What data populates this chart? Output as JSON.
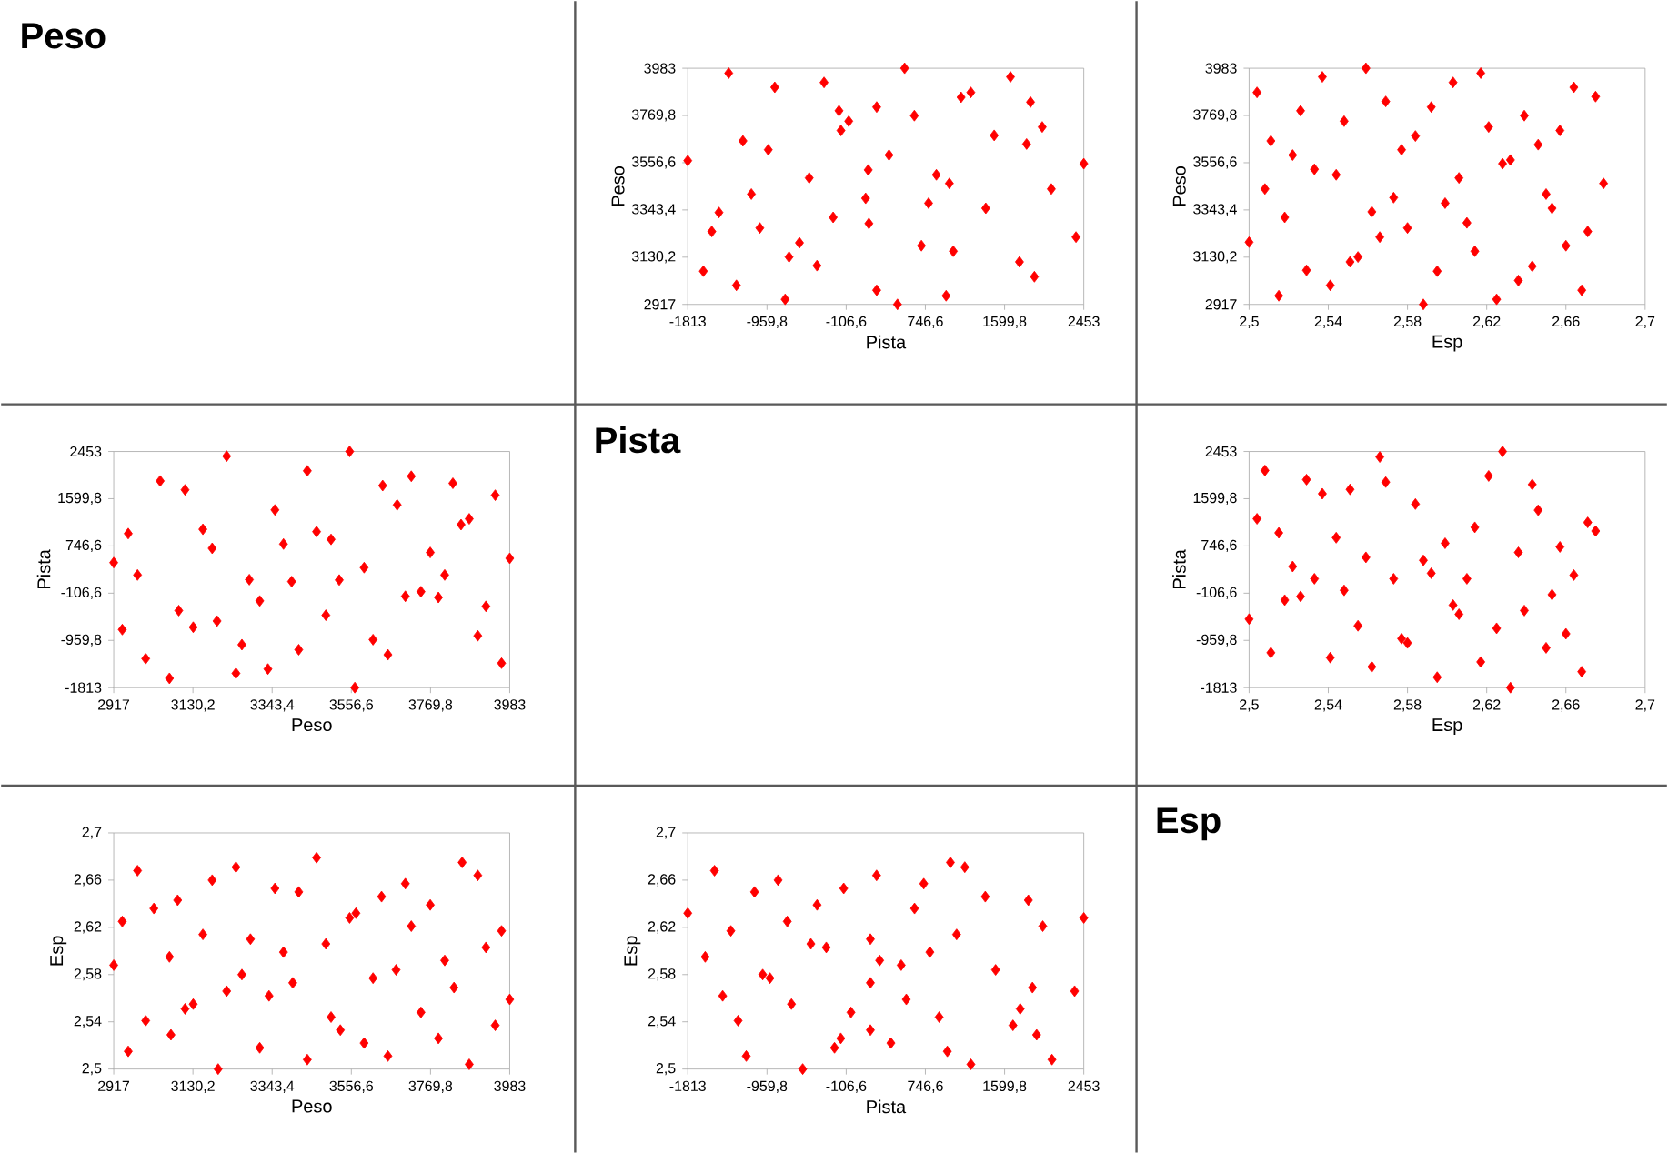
{
  "chart_data": [
    {
      "type": "other",
      "title": "Peso"
    },
    {
      "type": "scatter",
      "xlabel": "Pista",
      "ylabel": "Peso",
      "color": "#ff0000",
      "marker": "diamond",
      "xlim": [
        -1813,
        2453
      ],
      "ylim": [
        2917,
        3983
      ],
      "xticks": [
        -1813,
        {
          "value": -959.8,
          "label": "-959,8"
        },
        {
          "value": -106.6,
          "label": "-106,6"
        },
        {
          "value": 746.6,
          "label": "746,6"
        },
        {
          "value": 1599.8,
          "label": "1599,8"
        },
        2453
      ],
      "yticks": [
        2917,
        {
          "value": 3130.2,
          "label": "3130,2"
        },
        {
          "value": 3343.4,
          "label": "3343,4"
        },
        {
          "value": 3556.6,
          "label": "3556,6"
        },
        {
          "value": 3769.8,
          "label": "3769,8"
        },
        3983
      ],
      "x": [
        -1813,
        -1645,
        -1554,
        -1477,
        -1372,
        -1289,
        -1219,
        -1128,
        -1037,
        -946,
        -876,
        -764,
        -722,
        -610,
        -505,
        -421,
        -345,
        -247,
        -184,
        -163,
        -79,
        103,
        131,
        138,
        222,
        222,
        355,
        446,
        523,
        628,
        704,
        781,
        865,
        970,
        1005,
        1047,
        1131,
        1236,
        1397,
        1488,
        1663,
        1760,
        1837,
        1879,
        1921,
        2005,
        2103,
        2369,
        2453
      ],
      "values": [
        3566,
        3067,
        3246,
        3332,
        3961,
        3003,
        3655,
        3415,
        3262,
        3615,
        3897,
        2940,
        3131,
        3195,
        3488,
        3092,
        3919,
        3310,
        3791,
        3702,
        3744,
        3396,
        3524,
        3282,
        3808,
        2981,
        3591,
        2917,
        3983,
        3769,
        3182,
        3374,
        3502,
        2956,
        3463,
        3157,
        3852,
        3874,
        3351,
        3680,
        3944,
        3109,
        3641,
        3830,
        3042,
        3718,
        3438,
        3221,
        3552
      ]
    },
    {
      "type": "scatter",
      "xlabel": "Esp",
      "ylabel": "Peso",
      "color": "#ff0000",
      "marker": "diamond",
      "xlim": [
        2.5,
        2.7
      ],
      "ylim": [
        2917,
        3983
      ],
      "xticks": [
        {
          "value": 2.5,
          "label": "2,5"
        },
        {
          "value": 2.54,
          "label": "2,54"
        },
        {
          "value": 2.58,
          "label": "2,58"
        },
        {
          "value": 2.62,
          "label": "2,62"
        },
        {
          "value": 2.66,
          "label": "2,66"
        },
        {
          "value": 2.7,
          "label": "2,7"
        }
      ],
      "yticks": [
        2917,
        {
          "value": 3130.2,
          "label": "3130,2"
        },
        {
          "value": 3343.4,
          "label": "3343,4"
        },
        {
          "value": 3556.6,
          "label": "3556,6"
        },
        {
          "value": 3769.8,
          "label": "3769,8"
        },
        3983
      ],
      "x": [
        2.5,
        2.504,
        2.508,
        2.511,
        2.515,
        2.518,
        2.522,
        2.526,
        2.529,
        2.533,
        2.537,
        2.541,
        2.544,
        2.548,
        2.551,
        2.555,
        2.559,
        2.562,
        2.566,
        2.569,
        2.573,
        2.577,
        2.58,
        2.584,
        2.588,
        2.592,
        2.595,
        2.599,
        2.603,
        2.606,
        2.61,
        2.614,
        2.617,
        2.621,
        2.625,
        2.628,
        2.632,
        2.636,
        2.639,
        2.643,
        2.646,
        2.65,
        2.653,
        2.657,
        2.66,
        2.664,
        2.668,
        2.671,
        2.675,
        2.679
      ],
      "values": [
        3198,
        3874,
        3438,
        3655,
        2956,
        3310,
        3591,
        3791,
        3071,
        3527,
        3944,
        3003,
        3502,
        3744,
        3109,
        3131,
        3983,
        3335,
        3221,
        3833,
        3399,
        3615,
        3262,
        3677,
        2917,
        3808,
        3067,
        3374,
        3919,
        3488,
        3285,
        3157,
        3961,
        3718,
        2940,
        3552,
        3569,
        3025,
        3769,
        3089,
        3638,
        3415,
        3351,
        3702,
        3182,
        3897,
        2981,
        3246,
        3855,
        3463
      ]
    },
    {
      "type": "scatter",
      "xlabel": "Peso",
      "ylabel": "Pista",
      "color": "#ff0000",
      "marker": "diamond",
      "xlim": [
        2917,
        3983
      ],
      "ylim": [
        -1813,
        2453
      ],
      "xticks": [
        2917,
        {
          "value": 3130.2,
          "label": "3130,2"
        },
        {
          "value": 3343.4,
          "label": "3343,4"
        },
        {
          "value": 3556.6,
          "label": "3556,6"
        },
        {
          "value": 3769.8,
          "label": "3769,8"
        },
        3983
      ],
      "yticks": [
        -1813,
        {
          "value": -959.8,
          "label": "-959,8"
        },
        {
          "value": -106.6,
          "label": "-106,6"
        },
        {
          "value": 746.6,
          "label": "746,6"
        },
        {
          "value": 1599.8,
          "label": "1599,8"
        },
        2453
      ],
      "x": [
        3566,
        3067,
        3246,
        3332,
        3961,
        3003,
        3655,
        3415,
        3262,
        3615,
        3897,
        2940,
        3131,
        3195,
        3488,
        3092,
        3919,
        3310,
        3791,
        3702,
        3744,
        3396,
        3524,
        3282,
        3808,
        2981,
        3591,
        2917,
        3983,
        3769,
        3182,
        3374,
        3502,
        2956,
        3463,
        3157,
        3852,
        3874,
        3351,
        3680,
        3944,
        3109,
        3641,
        3830,
        3042,
        3718,
        3438,
        3221,
        3552
      ],
      "values": [
        -1813,
        -1645,
        -1554,
        -1477,
        -1372,
        -1289,
        -1219,
        -1128,
        -1037,
        -946,
        -876,
        -764,
        -722,
        -610,
        -505,
        -421,
        -345,
        -247,
        -184,
        -163,
        -79,
        103,
        131,
        138,
        222,
        222,
        355,
        446,
        523,
        628,
        704,
        781,
        865,
        970,
        1005,
        1047,
        1131,
        1236,
        1397,
        1488,
        1663,
        1760,
        1837,
        1879,
        1921,
        2005,
        2103,
        2369,
        2453
      ]
    },
    {
      "type": "other",
      "title": "Pista"
    },
    {
      "type": "scatter",
      "xlabel": "Esp",
      "ylabel": "Pista",
      "color": "#ff0000",
      "marker": "diamond",
      "xlim": [
        2.5,
        2.7
      ],
      "ylim": [
        -1813,
        2453
      ],
      "xticks": [
        {
          "value": 2.5,
          "label": "2,5"
        },
        {
          "value": 2.54,
          "label": "2,54"
        },
        {
          "value": 2.58,
          "label": "2,58"
        },
        {
          "value": 2.62,
          "label": "2,62"
        },
        {
          "value": 2.66,
          "label": "2,66"
        },
        {
          "value": 2.7,
          "label": "2,7"
        }
      ],
      "yticks": [
        -1813,
        {
          "value": -959.8,
          "label": "-959,8"
        },
        {
          "value": -106.6,
          "label": "-106,6"
        },
        {
          "value": 746.6,
          "label": "746,6"
        },
        {
          "value": 1599.8,
          "label": "1599,8"
        },
        2453
      ],
      "x": [
        2.5,
        2.504,
        2.508,
        2.511,
        2.515,
        2.518,
        2.522,
        2.526,
        2.529,
        2.533,
        2.537,
        2.541,
        2.544,
        2.548,
        2.551,
        2.555,
        2.559,
        2.562,
        2.566,
        2.569,
        2.573,
        2.577,
        2.58,
        2.584,
        2.588,
        2.592,
        2.595,
        2.599,
        2.603,
        2.606,
        2.61,
        2.614,
        2.617,
        2.621,
        2.625,
        2.628,
        2.632,
        2.636,
        2.639,
        2.643,
        2.646,
        2.65,
        2.653,
        2.657,
        2.66,
        2.664,
        2.668,
        2.671,
        2.675
      ],
      "values": [
        -575,
        1237,
        2110,
        -1183,
        983,
        -232,
        375,
        -165,
        1945,
        154,
        1690,
        -1271,
        895,
        -55,
        1768,
        -696,
        541,
        -1437,
        2354,
        1900,
        154,
        -928,
        -1006,
        1503,
        486,
        254,
        -1625,
        795,
        -321,
        -487,
        154,
        1083,
        -1349,
        2011,
        -741,
        2453,
        -1813,
        630,
        -420,
        1856,
        1392,
        -1094,
        -133,
        729,
        -840,
        221,
        -1525,
        1171,
        1016
      ]
    },
    {
      "type": "scatter",
      "xlabel": "Peso",
      "ylabel": "Esp",
      "color": "#ff0000",
      "marker": "diamond",
      "xlim": [
        2917,
        3983
      ],
      "ylim": [
        2.5,
        2.7
      ],
      "xticks": [
        2917,
        {
          "value": 3130.2,
          "label": "3130,2"
        },
        {
          "value": 3343.4,
          "label": "3343,4"
        },
        {
          "value": 3556.6,
          "label": "3556,6"
        },
        {
          "value": 3769.8,
          "label": "3769,8"
        },
        3983
      ],
      "yticks": [
        {
          "value": 2.5,
          "label": "2,5"
        },
        {
          "value": 2.54,
          "label": "2,54"
        },
        {
          "value": 2.58,
          "label": "2,58"
        },
        {
          "value": 2.62,
          "label": "2,62"
        },
        {
          "value": 2.66,
          "label": "2,66"
        },
        {
          "value": 2.7,
          "label": "2,7"
        }
      ],
      "x": [
        3198,
        3874,
        3438,
        3655,
        2956,
        3310,
        3591,
        3791,
        3071,
        3527,
        3944,
        3003,
        3502,
        3744,
        3109,
        3131,
        3983,
        3335,
        3221,
        3833,
        3399,
        3615,
        3262,
        3677,
        2917,
        3808,
        3067,
        3374,
        3919,
        3488,
        3285,
        3157,
        3961,
        3718,
        2940,
        3552,
        3569,
        3025,
        3769,
        3089,
        3638,
        3415,
        3351,
        3702,
        3182,
        3897,
        2981,
        3246,
        3855,
        3463
      ],
      "values": [
        2.5,
        2.504,
        2.508,
        2.511,
        2.515,
        2.518,
        2.522,
        2.526,
        2.529,
        2.533,
        2.537,
        2.541,
        2.544,
        2.548,
        2.551,
        2.555,
        2.559,
        2.562,
        2.566,
        2.569,
        2.573,
        2.577,
        2.58,
        2.584,
        2.588,
        2.592,
        2.595,
        2.599,
        2.603,
        2.606,
        2.61,
        2.614,
        2.617,
        2.621,
        2.625,
        2.628,
        2.632,
        2.636,
        2.639,
        2.643,
        2.646,
        2.65,
        2.653,
        2.657,
        2.66,
        2.664,
        2.668,
        2.671,
        2.675,
        2.679
      ]
    },
    {
      "type": "scatter",
      "xlabel": "Pista",
      "ylabel": "Esp",
      "color": "#ff0000",
      "marker": "diamond",
      "xlim": [
        -1813,
        2453
      ],
      "ylim": [
        2.5,
        2.7
      ],
      "xticks": [
        -1813,
        {
          "value": -959.8,
          "label": "-959,8"
        },
        {
          "value": -106.6,
          "label": "-106,6"
        },
        {
          "value": 746.6,
          "label": "746,6"
        },
        {
          "value": 1599.8,
          "label": "1599,8"
        },
        2453
      ],
      "yticks": [
        {
          "value": 2.5,
          "label": "2,5"
        },
        {
          "value": 2.54,
          "label": "2,54"
        },
        {
          "value": 2.58,
          "label": "2,58"
        },
        {
          "value": 2.62,
          "label": "2,62"
        },
        {
          "value": 2.66,
          "label": "2,66"
        },
        {
          "value": 2.7,
          "label": "2,7"
        }
      ],
      "x": [
        -575,
        1237,
        2110,
        -1183,
        983,
        -232,
        375,
        -165,
        1945,
        154,
        1690,
        -1271,
        895,
        -55,
        1768,
        -696,
        541,
        -1437,
        2354,
        1900,
        154,
        -928,
        -1006,
        1503,
        486,
        254,
        -1625,
        795,
        -321,
        -487,
        154,
        1083,
        -1349,
        2011,
        -741,
        2453,
        -1813,
        630,
        -420,
        1856,
        1392,
        -1094,
        -133,
        729,
        -840,
        221,
        -1525,
        1171,
        1016
      ],
      "values": [
        2.5,
        2.504,
        2.508,
        2.511,
        2.515,
        2.518,
        2.522,
        2.526,
        2.529,
        2.533,
        2.537,
        2.541,
        2.544,
        2.548,
        2.551,
        2.555,
        2.559,
        2.562,
        2.566,
        2.569,
        2.573,
        2.577,
        2.58,
        2.584,
        2.588,
        2.592,
        2.595,
        2.599,
        2.603,
        2.606,
        2.61,
        2.614,
        2.617,
        2.621,
        2.625,
        2.628,
        2.632,
        2.636,
        2.639,
        2.643,
        2.646,
        2.65,
        2.653,
        2.657,
        2.66,
        2.664,
        2.668,
        2.671,
        2.675
      ]
    },
    {
      "type": "other",
      "title": "Esp"
    }
  ]
}
